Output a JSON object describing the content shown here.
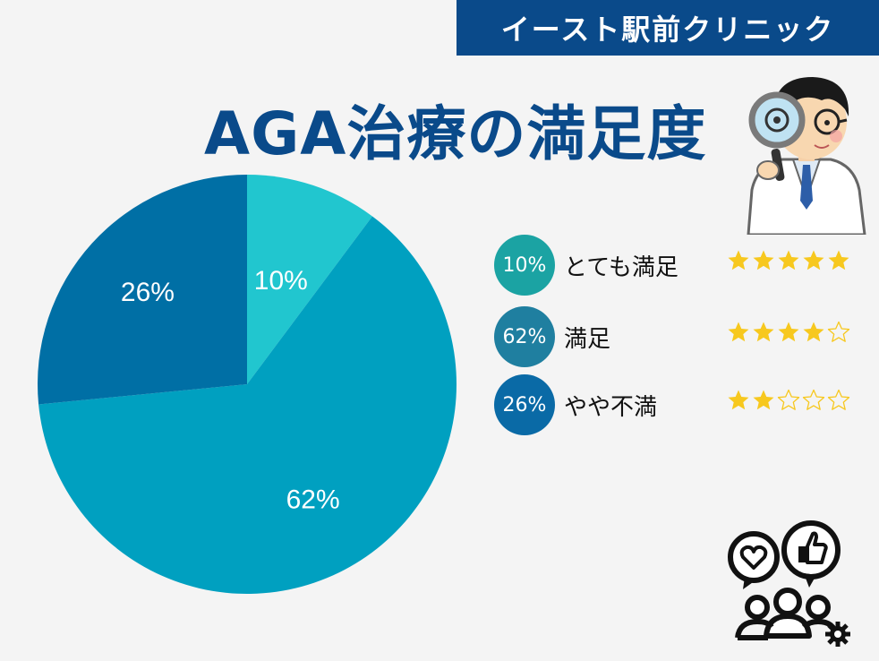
{
  "header": {
    "clinic_name": "イースト駅前クリニック"
  },
  "title": "AGA治療の満足度",
  "colors": {
    "brand": "#0a4a8a",
    "star": "#f7c81e"
  },
  "chart_data": {
    "type": "pie",
    "title": "AGA治療の満足度",
    "slices": [
      {
        "label": "とても満足",
        "value": 10,
        "display": "10%",
        "color": "#21c6cf",
        "legend_color": "#1ba3a3",
        "stars": 5
      },
      {
        "label": "満足",
        "value": 62,
        "display": "62%",
        "color": "#00a0c0",
        "legend_color": "#1f7fa0",
        "stars": 4
      },
      {
        "label": "やや不満",
        "value": 26,
        "display": "26%",
        "color": "#006fa5",
        "legend_color": "#0a6aa6",
        "stars": 2
      }
    ],
    "max_stars": 5,
    "legend_placement": "right"
  },
  "icons": {
    "doctor": "doctor-with-magnifier-icon",
    "people": "people-feedback-icon"
  }
}
